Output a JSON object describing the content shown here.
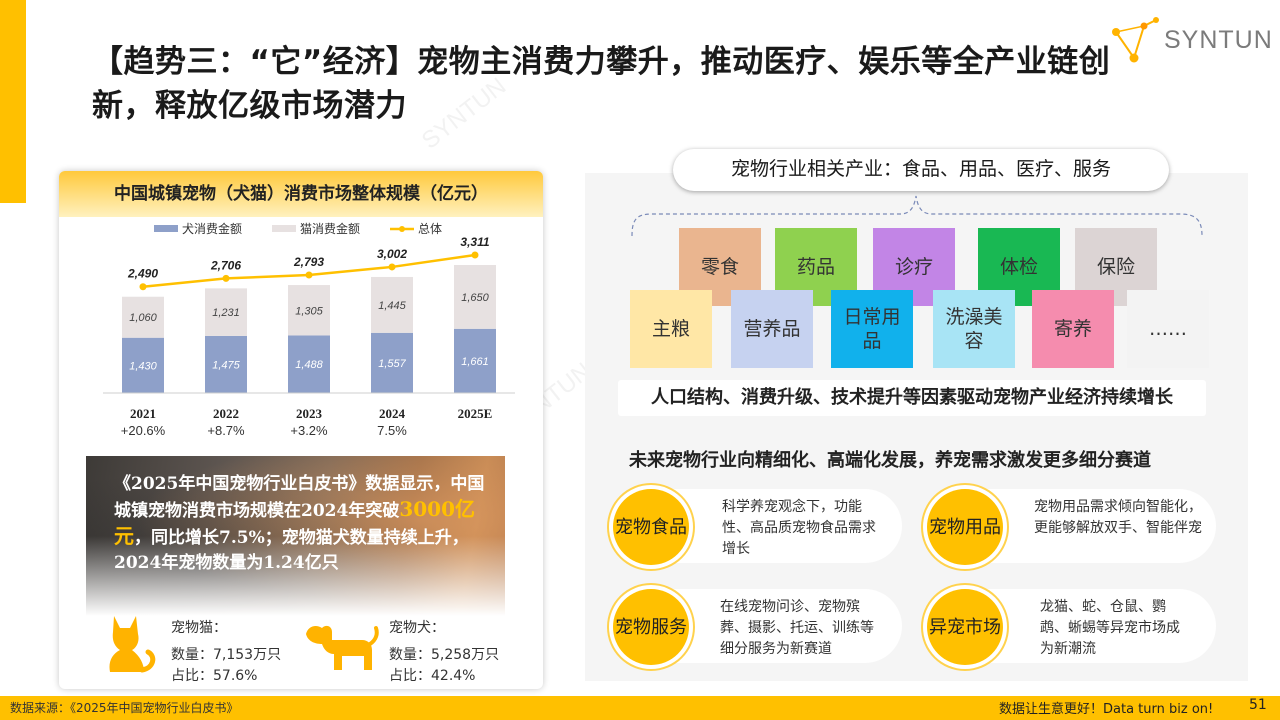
{
  "title": "【趋势三：“它”经济】宠物主消费力攀升，推动医疗、娱乐等全产业链创新，释放亿级市场潜力",
  "logo": {
    "text": "SYNTUN"
  },
  "watermark": "SYNTUN",
  "chart_data": {
    "type": "bar",
    "title": "中国城镇宠物（犬猫）消费市场整体规模（亿元）",
    "categories": [
      "2021",
      "2022",
      "2023",
      "2024",
      "2025E"
    ],
    "series": [
      {
        "name": "犬消费金额",
        "values": [
          1430,
          1475,
          1488,
          1557,
          1661
        ],
        "labels": [
          "1,430",
          "1,475",
          "1,488",
          "1,557",
          "1,661"
        ],
        "color": "#8ea0c9",
        "kind": "bar-stacked"
      },
      {
        "name": "猫消费金额",
        "values": [
          1060,
          1231,
          1305,
          1445,
          1650
        ],
        "labels": [
          "1,060",
          "1,231",
          "1,305",
          "1,445",
          "1,650"
        ],
        "color": "#e7e1e1",
        "kind": "bar-stacked"
      },
      {
        "name": "总体",
        "values": [
          2490,
          2706,
          2793,
          3002,
          3311
        ],
        "labels": [
          "2,490",
          "2,706",
          "2,793",
          "3,002",
          "3,311"
        ],
        "color": "#ffc000",
        "kind": "line"
      }
    ],
    "growth": [
      "+20.6%",
      "+8.7%",
      "+3.2%",
      "7.5%",
      ""
    ],
    "legend_position": "top",
    "grid": false
  },
  "photo_text": {
    "part1": "《2025年中国宠物行业白皮书》数据显示，中国城镇宠物消费市场规模在2024年突破",
    "highlight": "3000亿元",
    "part2": "，同比增长7.5%；宠物猫犬数量持续上升，2024年宠物数量为1.24亿只"
  },
  "pets": {
    "cat": {
      "label": "宠物猫：",
      "count": "数量：7,153万只",
      "share": "占比：57.6%"
    },
    "dog": {
      "label": "宠物犬：",
      "count": "数量：5,258万只",
      "share": "占比：42.4%"
    }
  },
  "industry": {
    "header": "宠物行业相关产业：食品、用品、医疗、服务",
    "top_row": [
      {
        "label": "零食",
        "color": "#eab58f"
      },
      {
        "label": "药品",
        "color": "#8fd14f"
      },
      {
        "label": "诊疗",
        "color": "#c285e6"
      },
      {
        "label": "体检",
        "color": "#19b853"
      },
      {
        "label": "保险",
        "color": "#dcd4d4"
      }
    ],
    "bottom_row": [
      {
        "label": "主粮",
        "color": "#ffe7a6"
      },
      {
        "label": "营养品",
        "color": "#c6d2f0"
      },
      {
        "label": "日常用品",
        "color": "#11b1ec"
      },
      {
        "label": "洗澡美容",
        "color": "#a8e4f5"
      },
      {
        "label": "寄养",
        "color": "#f58cae"
      },
      {
        "label": "……",
        "color": "#f3f3f3"
      }
    ],
    "driver": "人口结构、消费升级、技术提升等因素驱动宠物产业经济持续增长"
  },
  "future": {
    "heading": "未来宠物行业向精细化、高端化发展，养宠需求激发更多细分赛道",
    "segments": [
      {
        "name": "宠物食品",
        "desc": "科学养宠观念下，功能性、高品质宠物食品需求增长"
      },
      {
        "name": "宠物用品",
        "desc": "宠物用品需求倾向智能化，更能够解放双手、智能伴宠"
      },
      {
        "name": "宠物服务",
        "desc": "在线宠物问诊、宠物殡葬、摄影、托运、训练等细分服务为新赛道"
      },
      {
        "name": "异宠市场",
        "desc": "龙猫、蛇、仓鼠、鹦鹉、蜥蜴等异宠市场成为新潮流"
      }
    ]
  },
  "footer": {
    "source": "数据来源：《2025年中国宠物行业白皮书》",
    "slogan": "数据让生意更好！Data turn biz on!",
    "page": "51"
  }
}
